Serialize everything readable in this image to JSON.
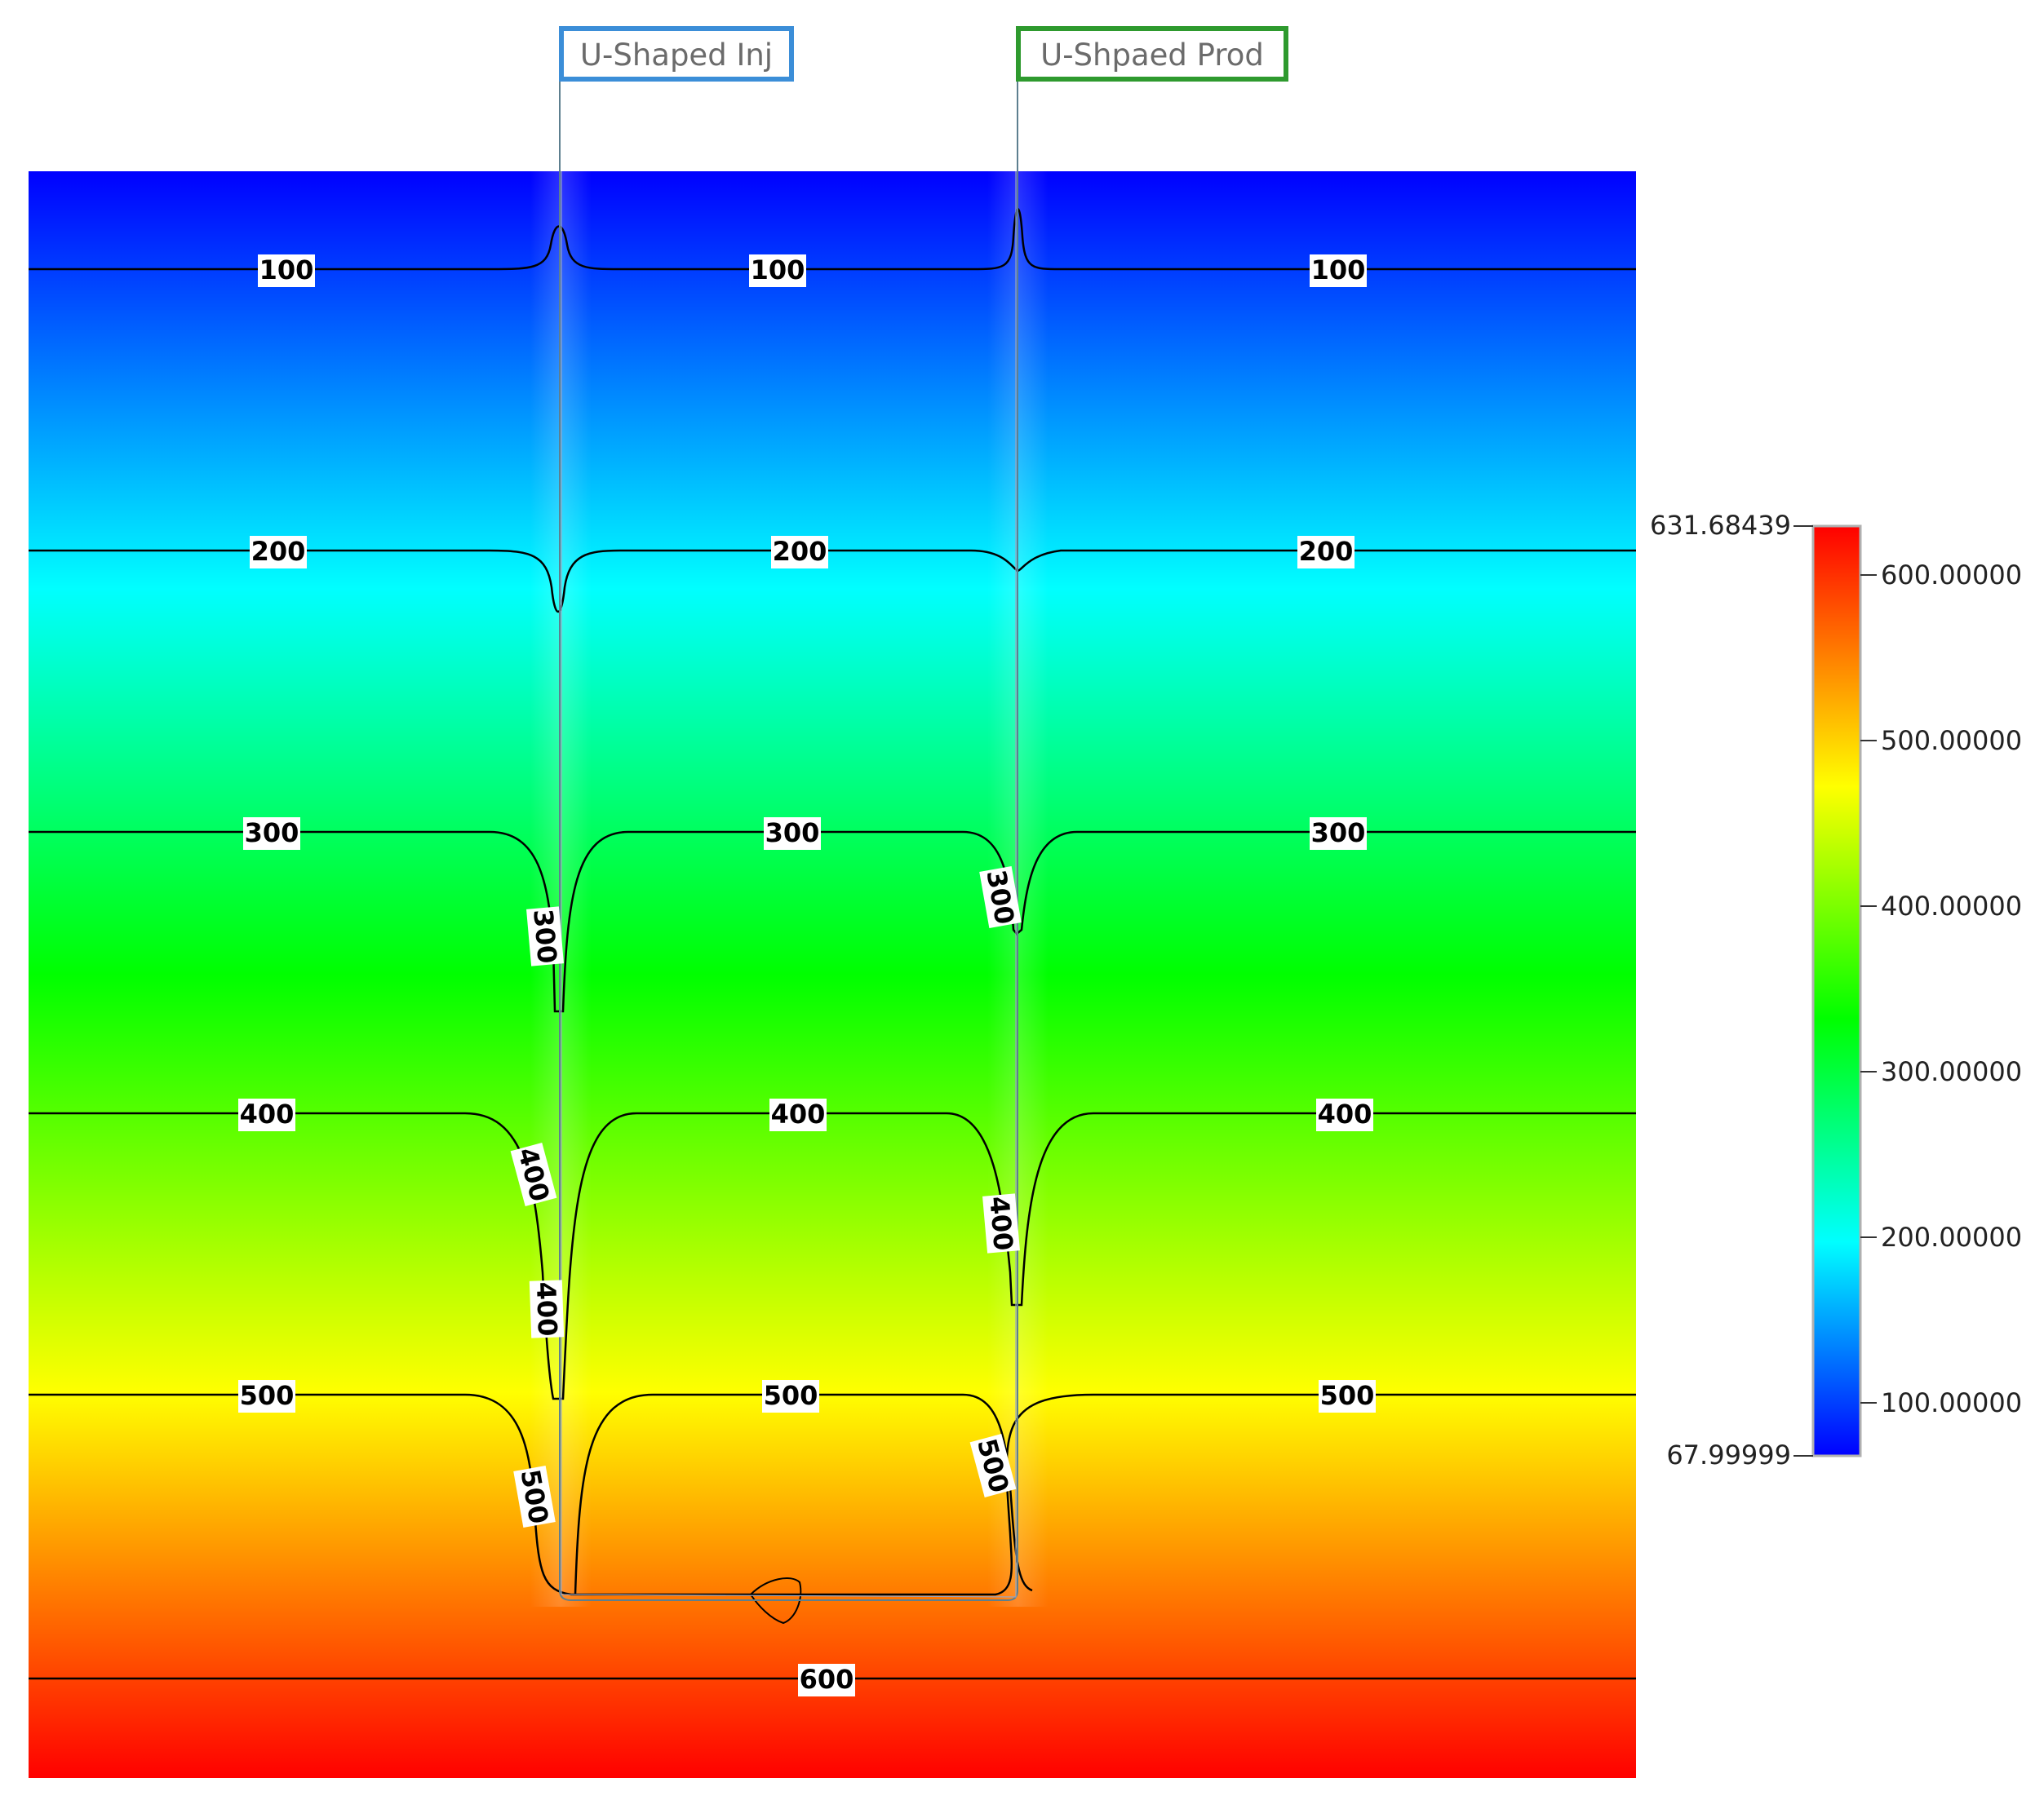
{
  "wells": [
    {
      "name": "U-Shaped Inj",
      "color": "#3b8ed8"
    },
    {
      "name": "U-Shpaed Prod",
      "color": "#2e9a2e"
    }
  ],
  "contours": [
    {
      "value": "100"
    },
    {
      "value": "200"
    },
    {
      "value": "300"
    },
    {
      "value": "400"
    },
    {
      "value": "500"
    },
    {
      "value": "600"
    }
  ],
  "colorbar": {
    "max_label": "631.68439",
    "min_label": "67.99999",
    "ticks": [
      "600.00000",
      "500.00000",
      "400.00000",
      "300.00000",
      "200.00000",
      "100.00000"
    ],
    "colormap": [
      "#0000ff",
      "#00ffff",
      "#00ff00",
      "#ffff00",
      "#ff0000"
    ]
  }
}
